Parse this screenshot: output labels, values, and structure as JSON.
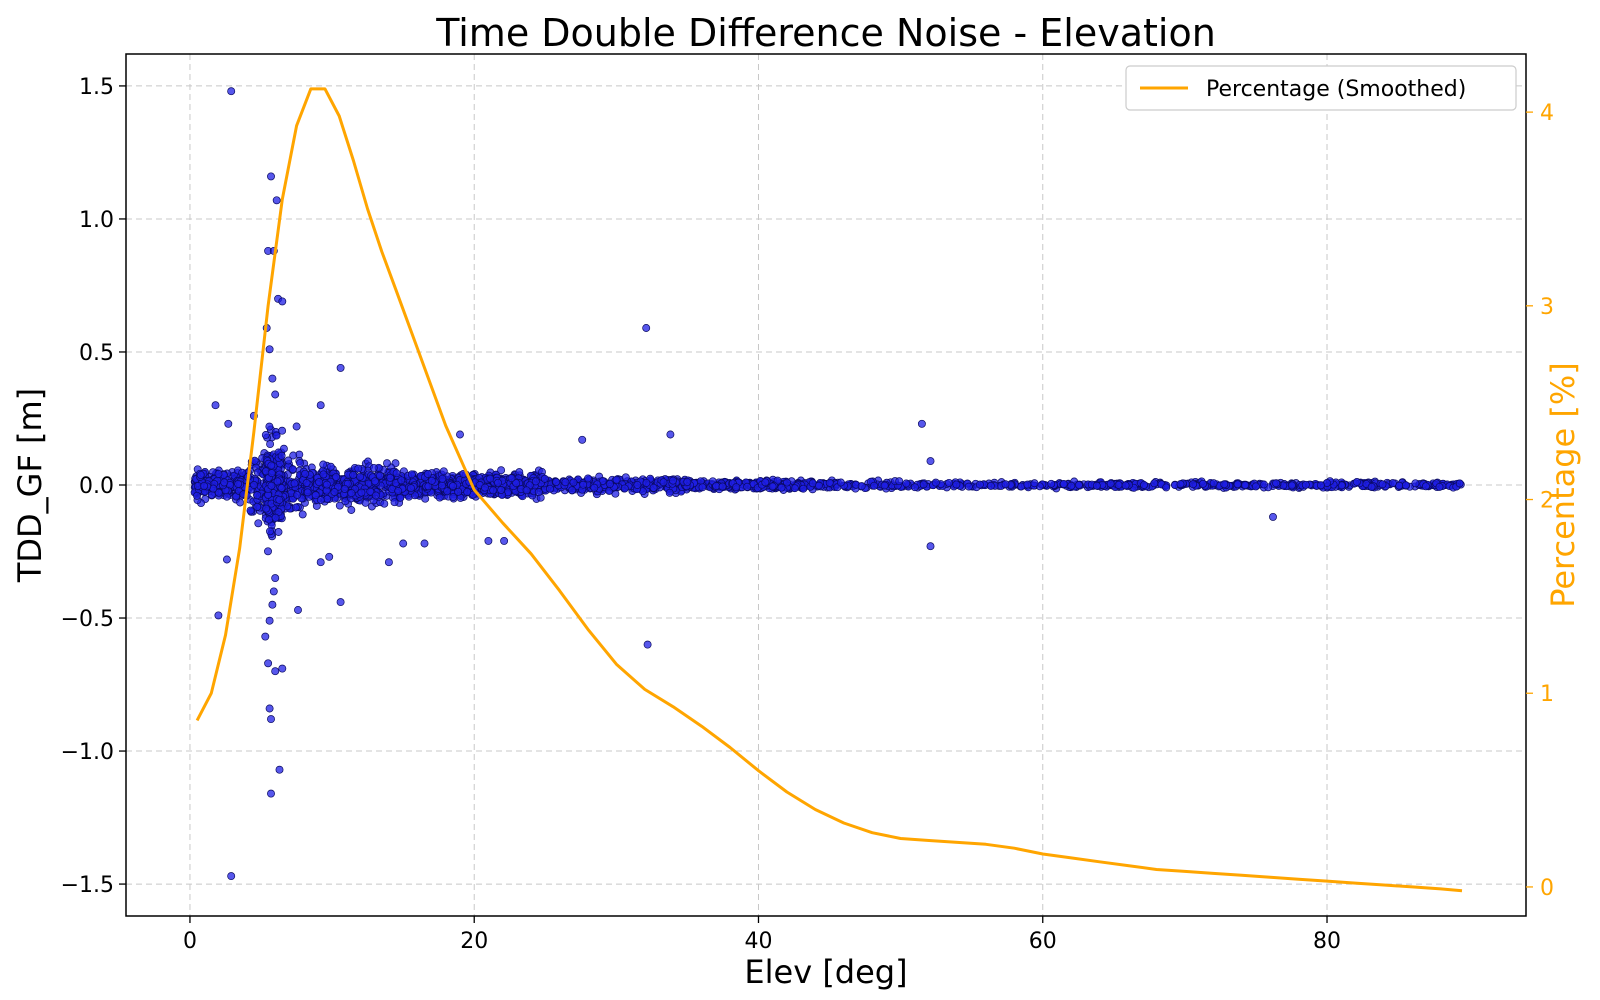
{
  "chart_data": {
    "type": "scatter",
    "title": "Time Double Difference Noise - Elevation",
    "xlabel": "Elev [deg]",
    "ylabel": "TDD_GF [m]",
    "y2label": "Percentage [%]",
    "xlim": [
      -4.5,
      94
    ],
    "ylim": [
      -1.62,
      1.62
    ],
    "y2lim": [
      -0.15,
      4.3
    ],
    "xticks": [
      0,
      20,
      40,
      60,
      80
    ],
    "yticks": [
      -1.5,
      -1.0,
      -0.5,
      0.0,
      0.5,
      1.0,
      1.5
    ],
    "ytick_labels": [
      "−1.5",
      "−1.0",
      "−0.5",
      "0.0",
      "0.5",
      "1.0",
      "1.5"
    ],
    "y2ticks": [
      0,
      1,
      2,
      3,
      4
    ],
    "grid": true,
    "legend": {
      "position": "top-right",
      "entries": [
        "Percentage (Smoothed)"
      ]
    },
    "colors": {
      "scatter": "#1f1fe6",
      "scatter_edge": "#0a0a60",
      "line": "#ffa500",
      "grid": "#c8c8c8"
    },
    "series": [
      {
        "name": "TDD_GF",
        "kind": "scatter",
        "outliers": [
          [
            2.9,
            1.48
          ],
          [
            2.9,
            -1.47
          ],
          [
            5.7,
            1.16
          ],
          [
            6.1,
            1.07
          ],
          [
            5.5,
            0.88
          ],
          [
            5.9,
            0.88
          ],
          [
            6.2,
            0.7
          ],
          [
            6.5,
            0.69
          ],
          [
            5.4,
            0.59
          ],
          [
            5.6,
            0.51
          ],
          [
            5.8,
            0.4
          ],
          [
            6.0,
            0.34
          ],
          [
            5.7,
            -0.88
          ],
          [
            5.6,
            -0.84
          ],
          [
            5.7,
            -1.16
          ],
          [
            6.3,
            -1.07
          ],
          [
            6.0,
            -0.7
          ],
          [
            6.5,
            -0.69
          ],
          [
            5.5,
            -0.67
          ],
          [
            5.3,
            -0.57
          ],
          [
            5.6,
            -0.51
          ],
          [
            5.8,
            -0.45
          ],
          [
            5.9,
            -0.4
          ],
          [
            6.0,
            -0.35
          ],
          [
            1.8,
            0.3
          ],
          [
            2.7,
            0.23
          ],
          [
            4.5,
            0.26
          ],
          [
            7.5,
            0.22
          ],
          [
            9.2,
            0.3
          ],
          [
            10.6,
            0.44
          ],
          [
            10.6,
            -0.44
          ],
          [
            7.6,
            -0.47
          ],
          [
            9.2,
            -0.29
          ],
          [
            9.8,
            -0.27
          ],
          [
            14.0,
            -0.29
          ],
          [
            2.0,
            -0.49
          ],
          [
            2.6,
            -0.28
          ],
          [
            32.1,
            0.59
          ],
          [
            32.2,
            -0.6
          ],
          [
            51.5,
            0.23
          ],
          [
            52.1,
            -0.23
          ],
          [
            52.1,
            0.09
          ],
          [
            33.8,
            0.19
          ],
          [
            27.6,
            0.17
          ],
          [
            21.0,
            -0.21
          ],
          [
            22.1,
            -0.21
          ],
          [
            76.2,
            -0.12
          ],
          [
            19.0,
            0.19
          ],
          [
            15.0,
            -0.22
          ],
          [
            16.5,
            -0.22
          ]
        ]
      },
      {
        "name": "Percentage (Smoothed)",
        "kind": "line",
        "x": [
          0.5,
          1.5,
          2.5,
          3.5,
          4.5,
          5.5,
          6.5,
          7.5,
          8.5,
          9.5,
          10.5,
          11.5,
          12.5,
          13.5,
          14.5,
          16.0,
          18.0,
          20.0,
          22.0,
          24.0,
          26.0,
          28.0,
          30.0,
          32.0,
          34.0,
          36.0,
          38.0,
          40.0,
          42.0,
          44.0,
          46.0,
          48.0,
          50.0,
          52.0,
          54.0,
          56.0,
          58.0,
          60.0,
          62.0,
          64.0,
          66.0,
          68.0,
          70.0,
          72.0,
          74.0,
          76.0,
          78.0,
          80.0,
          82.0,
          84.0,
          86.0,
          88.0,
          89.5
        ],
        "values": [
          0.86,
          1.0,
          1.3,
          1.75,
          2.35,
          3.0,
          3.55,
          3.93,
          4.12,
          4.12,
          3.98,
          3.75,
          3.5,
          3.28,
          3.08,
          2.78,
          2.38,
          2.05,
          1.88,
          1.72,
          1.53,
          1.33,
          1.15,
          1.02,
          0.93,
          0.83,
          0.72,
          0.6,
          0.49,
          0.4,
          0.33,
          0.28,
          0.25,
          0.24,
          0.23,
          0.22,
          0.2,
          0.17,
          0.15,
          0.13,
          0.11,
          0.09,
          0.08,
          0.07,
          0.06,
          0.05,
          0.04,
          0.03,
          0.02,
          0.01,
          0.0,
          -0.01,
          -0.02
        ]
      }
    ]
  }
}
